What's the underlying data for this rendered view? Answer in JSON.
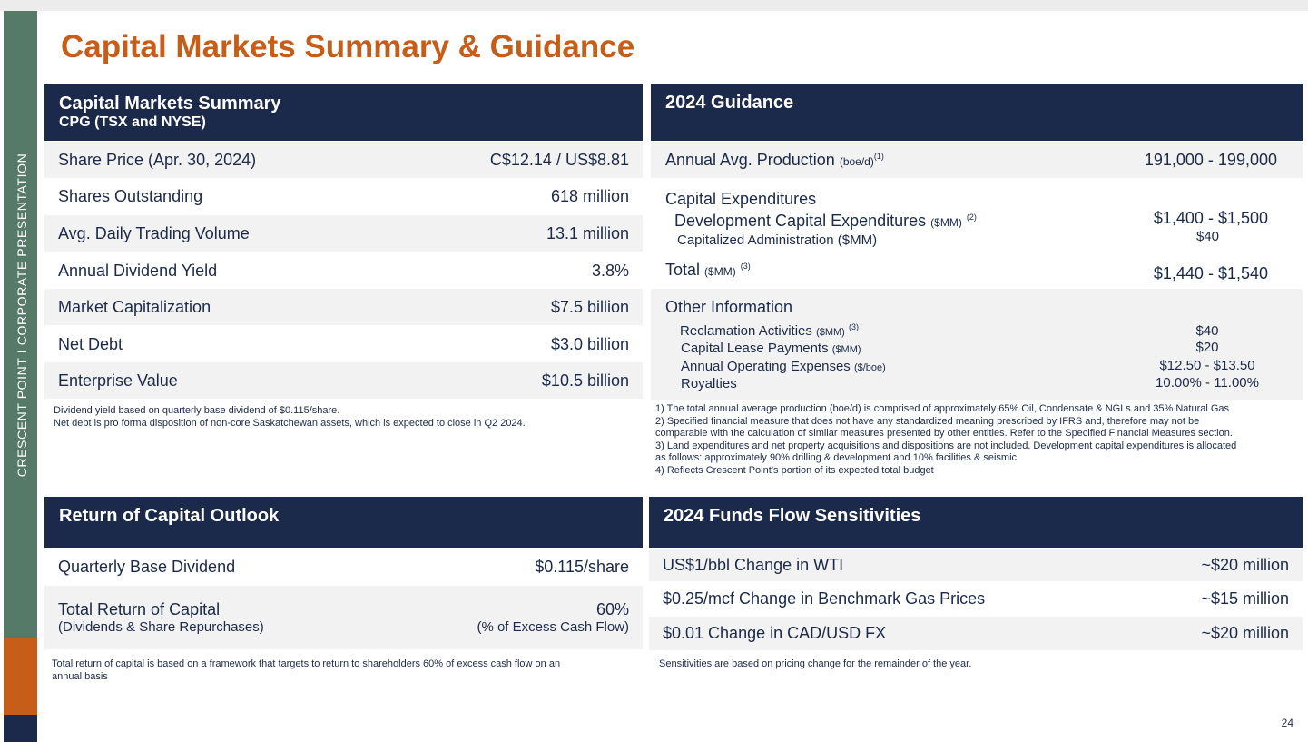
{
  "sidebar": {
    "text": "CRESCENT POINT   I   CORPORATE PRESENTATION"
  },
  "title": "Capital Markets Summary & Guidance",
  "summary": {
    "title": "Capital Markets Summary",
    "subtitle": "CPG (TSX and NYSE)",
    "rows": [
      {
        "label": "Share Price (Apr. 30, 2024)",
        "value": "C$12.14 / US$8.81"
      },
      {
        "label": "Shares Outstanding",
        "value": "618 million"
      },
      {
        "label": "Avg. Daily Trading Volume",
        "value": "13.1 million"
      },
      {
        "label": "Annual Dividend Yield",
        "value": "3.8%"
      },
      {
        "label": "Market Capitalization",
        "value": "$7.5 billion"
      },
      {
        "label": "Net Debt",
        "value": "$3.0 billion"
      },
      {
        "label": "Enterprise Value",
        "value": "$10.5 billion"
      }
    ],
    "notes": [
      "Dividend yield based on quarterly base dividend of $0.115/share.",
      "Net debt is pro forma disposition of non-core Saskatchewan assets, which is expected to close in Q2 2024."
    ]
  },
  "guidance": {
    "title": "2024 Guidance",
    "production": {
      "label": "Annual Avg. Production",
      "unit": "(boe/d)",
      "sup": "(1)",
      "value": "191,000 - 199,000"
    },
    "capex": {
      "label": "Capital Expenditures",
      "dev_label": "Development Capital Expenditures",
      "dev_unit": "($MM)",
      "dev_sup": "(2)",
      "dev_value": "$1,400 - $1,500",
      "admin_label": "Capitalized Administration ($MM)",
      "admin_value": "$40",
      "total_label": "Total",
      "total_unit": "($MM)",
      "total_sup": "(3)",
      "total_value": "$1,440 - $1,540"
    },
    "other": {
      "label": "Other Information",
      "items": [
        {
          "label": "Reclamation Activities",
          "unit": "($MM)",
          "sup": "(3)",
          "value": "$40"
        },
        {
          "label": "Capital Lease Payments",
          "unit": "($MM)",
          "sup": "",
          "value": "$20"
        },
        {
          "label": "Annual Operating Expenses",
          "unit": "($/boe)",
          "sup": "",
          "value": "$12.50 - $13.50"
        },
        {
          "label": "Royalties",
          "unit": "",
          "sup": "",
          "value": "10.00% - 11.00%"
        }
      ]
    },
    "notes": [
      "1) The total annual average production (boe/d) is comprised of approximately 65% Oil, Condensate & NGLs and 35% Natural Gas",
      "2) Specified financial measure that does not have any standardized meaning prescribed by IFRS and, therefore may not be",
      "comparable with the calculation of similar measures presented by other entities. Refer to the Specified Financial Measures section.",
      "3) Land expenditures and net property acquisitions and dispositions are not included. Development capital expenditures is allocated",
      "as follows: approximately 90% drilling & development and 10% facilities & seismic",
      "4) Reflects Crescent Point’s portion of its expected total budget"
    ]
  },
  "return": {
    "title": "Return of Capital Outlook",
    "dividend_label": "Quarterly Base Dividend",
    "dividend_value": "$0.115/share",
    "total_label": "Total Return of Capital",
    "total_sub": "(Dividends & Share Repurchases)",
    "total_value": "60%",
    "total_value_sub": "(% of Excess Cash Flow)",
    "notes": [
      "Total return of capital is based on a framework that targets to return to shareholders 60% of excess cash flow on an",
      "annual basis"
    ]
  },
  "sensitivities": {
    "title": "2024 Funds Flow Sensitivities",
    "rows": [
      {
        "label": "US$1/bbl Change in WTI",
        "value": "~$20 million"
      },
      {
        "label": "$0.25/mcf Change in Benchmark Gas Prices",
        "value": "~$15 million"
      },
      {
        "label": "$0.01 Change in CAD/USD FX",
        "value": "~$20 million"
      }
    ],
    "note": "Sensitivities are based on pricing change for the remainder of the year."
  },
  "page_number": "24",
  "colors": {
    "navy": "#1b2a4a",
    "orange": "#c65d18",
    "green": "#557a68",
    "row_alt": "#f2f2f2"
  }
}
